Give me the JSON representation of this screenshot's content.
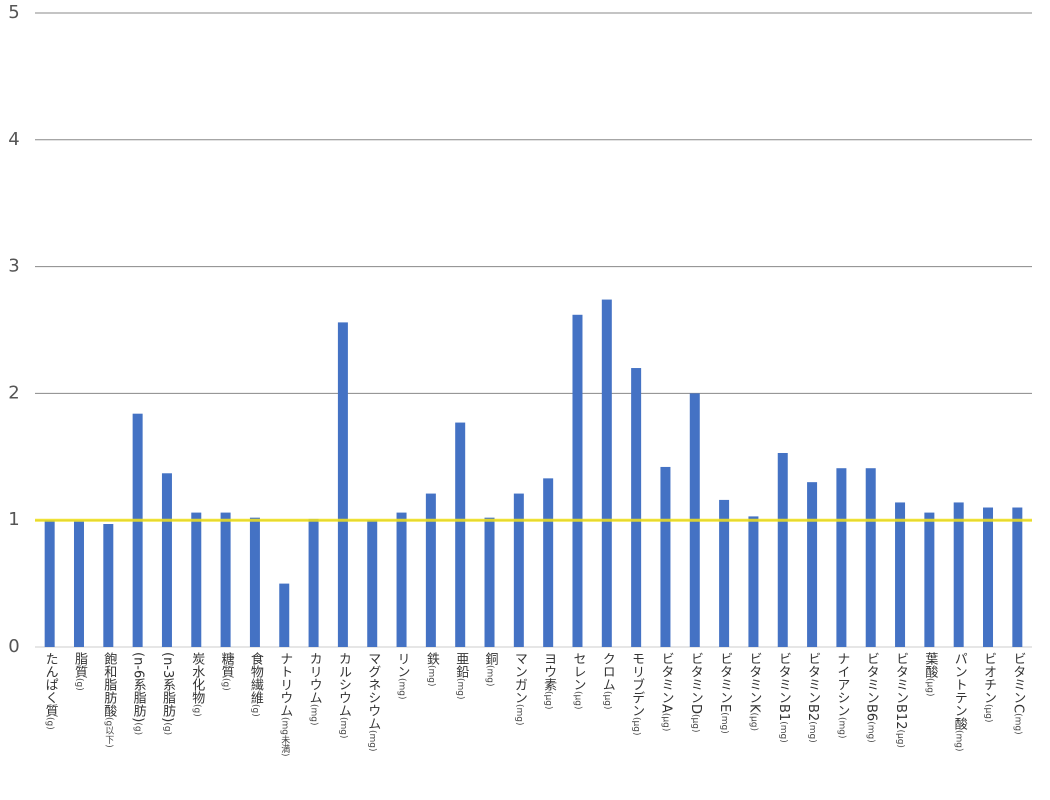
{
  "chart_data": {
    "type": "bar",
    "categories": [
      "たんぱく質",
      "脂質",
      "飽和脂肪酸",
      "(n-6系脂肪)",
      "(n-3系脂肪)",
      "炭水化物",
      "糖質",
      "食物繊維",
      "ナトリウム",
      "カリウム",
      "カルシウム",
      "マグネシウム",
      "リン",
      "鉄",
      "亜鉛",
      "銅",
      "マンガン",
      "ヨウ素",
      "セレン",
      "クロム",
      "モリブデン",
      "ビタミンA",
      "ビタミンD",
      "ビタミンE",
      "ビタミンK",
      "ビタミンB1",
      "ビタミンB2",
      "ナイアシン",
      "ビタミンB6",
      "ビタミンB12",
      "葉酸",
      "パントテン酸",
      "ビオチン",
      "ビタミンC"
    ],
    "units": [
      "(g)",
      "(g)",
      "(g以下)",
      "(g)",
      "(g)",
      "(g)",
      "(g)",
      "(g)",
      "(mg未満)",
      "(mg)",
      "(mg)",
      "(mg)",
      "(mg)",
      "(mg)",
      "(mg)",
      "(mg)",
      "(mg)",
      "(µg)",
      "(µg)",
      "(µg)",
      "(µg)",
      "(µg)",
      "(µg)",
      "(mg)",
      "(µg)",
      "(mg)",
      "(mg)",
      "(mg)",
      "(mg)",
      "(µg)",
      "(µg)",
      "(mg)",
      "(µg)",
      "(mg)"
    ],
    "values": [
      1.0,
      0.99,
      0.97,
      1.84,
      1.37,
      1.06,
      1.06,
      1.02,
      0.5,
      1.01,
      2.56,
      1.0,
      1.06,
      1.21,
      1.77,
      1.02,
      1.21,
      1.33,
      2.62,
      2.74,
      2.2,
      1.42,
      2.0,
      1.16,
      1.03,
      1.53,
      1.3,
      1.41,
      1.41,
      1.14,
      1.06,
      1.14,
      1.1,
      1.1
    ],
    "color": "#4472c4",
    "ylim": [
      0,
      5
    ],
    "yticks": [
      0,
      1,
      2,
      3,
      4,
      5
    ],
    "grid": true,
    "reference_line": 1,
    "reference_color": "#f2e21c"
  }
}
